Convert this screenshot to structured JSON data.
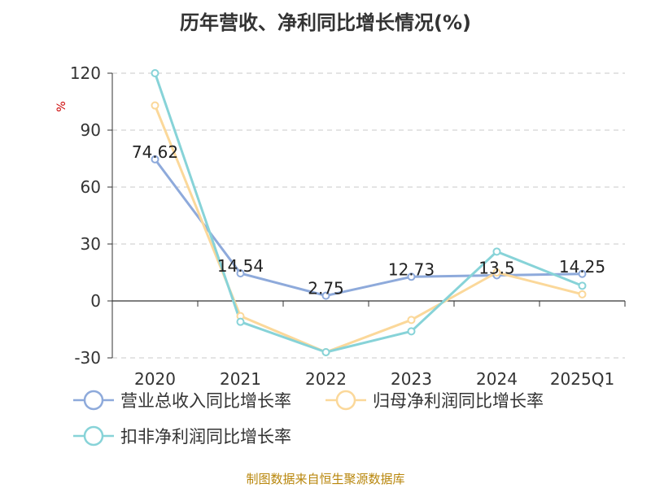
{
  "chart_data": {
    "type": "line",
    "title": "历年营收、净利同比增长情况(%)",
    "ylabel": "%",
    "categories": [
      "2020",
      "2021",
      "2022",
      "2023",
      "2024",
      "2025Q1"
    ],
    "yticks": [
      "120",
      "90",
      "60",
      "30",
      "0",
      "-30"
    ],
    "ylim": [
      -30,
      120
    ],
    "grid": true,
    "legend_position": "bottom",
    "series": [
      {
        "name": "营业总收入同比增长率",
        "color": "#8eaadb",
        "values": [
          74.62,
          14.54,
          2.75,
          12.73,
          13.5,
          14.25
        ],
        "labels": [
          "74.62",
          "14.54",
          "2.75",
          "12.73",
          "13.5",
          "14.25"
        ]
      },
      {
        "name": "归母净利润同比增长率",
        "color": "#fbd89a",
        "values": [
          103,
          -8,
          -27,
          -10,
          15,
          3.5
        ]
      },
      {
        "name": "扣非净利润同比增长率",
        "color": "#87d3d8",
        "values": [
          120,
          -11,
          -27,
          -16,
          26,
          8
        ]
      }
    ]
  },
  "source_text": "制图数据来自恒生聚源数据库"
}
